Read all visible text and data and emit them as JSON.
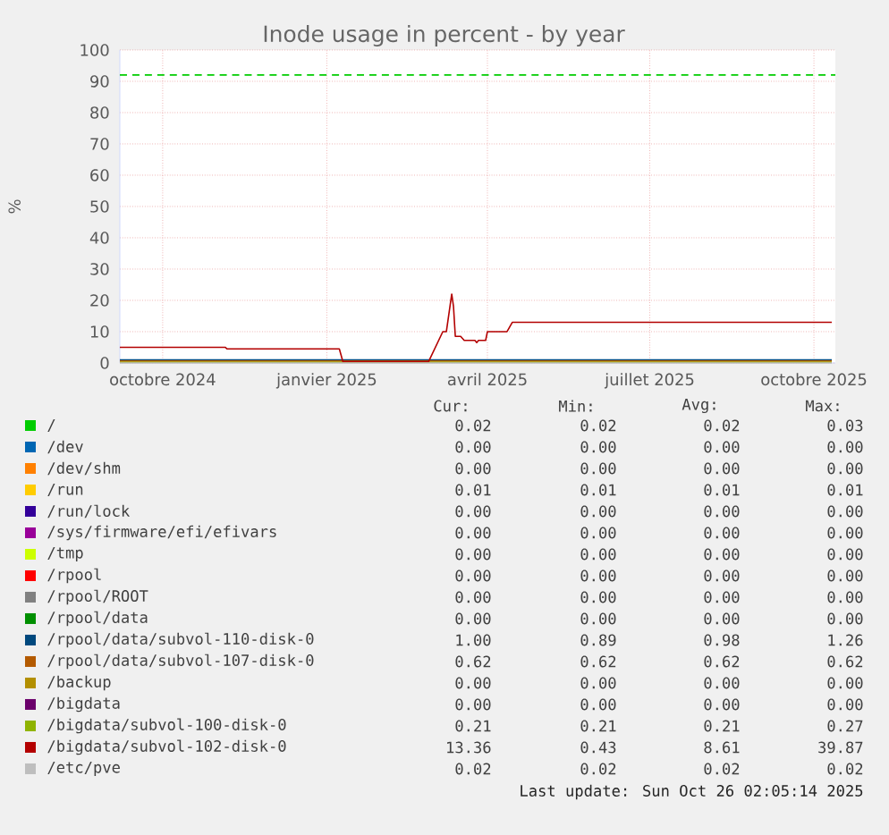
{
  "chart_data": {
    "type": "line",
    "title": "Inode usage in percent - by year",
    "ylabel": "%",
    "xlim": [
      "2024-09-07",
      "2025-10-13"
    ],
    "xticks": [
      {
        "value": "2024-10-01",
        "label": "octobre 2024"
      },
      {
        "value": "2025-01-01",
        "label": "janvier 2025"
      },
      {
        "value": "2025-04-01",
        "label": "avril 2025"
      },
      {
        "value": "2025-07-01",
        "label": "juillet 2025"
      },
      {
        "value": "2025-10-01",
        "label": "octobre 2025"
      }
    ],
    "ylim": [
      0,
      100
    ],
    "yticks": [
      0,
      10,
      20,
      30,
      40,
      50,
      60,
      70,
      80,
      90,
      100
    ],
    "grid": true,
    "legend": "bottom",
    "ref_lines": [
      {
        "axis": "y",
        "value": 92,
        "color": "#00cc00",
        "line_style": "dashed"
      }
    ],
    "series": [
      {
        "name": "/",
        "color": "#00cc00"
      },
      {
        "name": "/dev",
        "color": "#0066b3"
      },
      {
        "name": "/dev/shm",
        "color": "#ff8000"
      },
      {
        "name": "/run",
        "color": "#ffcc00"
      },
      {
        "name": "/run/lock",
        "color": "#330099"
      },
      {
        "name": "/sys/firmware/efi/efivars",
        "color": "#990099"
      },
      {
        "name": "/tmp",
        "color": "#ccff00"
      },
      {
        "name": "/rpool",
        "color": "#ff0000"
      },
      {
        "name": "/rpool/ROOT",
        "color": "#808080"
      },
      {
        "name": "/rpool/data",
        "color": "#008f00"
      },
      {
        "name": "/rpool/data/subvol-110-disk-0",
        "color": "#00487d",
        "x": [
          "2024-09-07",
          "2025-10-11"
        ],
        "values": [
          1,
          1
        ]
      },
      {
        "name": "/rpool/data/subvol-107-disk-0",
        "color": "#b35a00",
        "x": [
          "2024-09-07",
          "2025-10-11"
        ],
        "values": [
          0.6,
          0.6
        ]
      },
      {
        "name": "/backup",
        "color": "#b38f00"
      },
      {
        "name": "/bigdata",
        "color": "#6b006b"
      },
      {
        "name": "/bigdata/subvol-100-disk-0",
        "color": "#8fb300",
        "x": [
          "2024-09-07",
          "2025-10-11"
        ],
        "values": [
          0.2,
          0.2
        ]
      },
      {
        "name": "/bigdata/subvol-102-disk-0",
        "color": "#b30000",
        "x": [
          "2024-09-07",
          "2024-11-05",
          "2024-11-06",
          "2025-01-08",
          "2025-01-10",
          "2025-02-27",
          "2025-03-07",
          "2025-03-09",
          "2025-03-11",
          "2025-03-12",
          "2025-03-13",
          "2025-03-14",
          "2025-03-17",
          "2025-03-19",
          "2025-03-25",
          "2025-03-26",
          "2025-03-27",
          "2025-03-31",
          "2025-04-01",
          "2025-04-12",
          "2025-04-15",
          "2025-10-11"
        ],
        "values": [
          5,
          5,
          4.5,
          4.5,
          0.4,
          0.4,
          10,
          10,
          18,
          22,
          18,
          8.5,
          8.5,
          7.2,
          7.2,
          6.5,
          7.2,
          7.2,
          10,
          10,
          13,
          13
        ]
      },
      {
        "name": "/etc/pve",
        "color": "#bebebe",
        "x": [
          "2024-09-07",
          "2025-10-11"
        ],
        "values": [
          0,
          0
        ]
      }
    ],
    "annotations": [
      "Cur:",
      "Min:",
      "Avg:",
      "Max:",
      "0.02",
      "0.02",
      "0.02",
      "0.03",
      "0.00",
      "0.00",
      "0.00",
      "0.00",
      "0.00",
      "0.00",
      "0.00",
      "0.00",
      "0.01",
      "0.01",
      "0.01",
      "0.01",
      "0.00",
      "0.00",
      "0.00",
      "0.00",
      "0.00",
      "0.00",
      "0.00",
      "0.00",
      "0.00",
      "0.00",
      "0.00",
      "0.00",
      "0.00",
      "0.00",
      "0.00",
      "0.00",
      "0.00",
      "0.00",
      "0.00",
      "0.00",
      "0.00",
      "0.00",
      "0.00",
      "0.00",
      "1.00",
      "0.89",
      "0.98",
      "1.26",
      "0.62",
      "0.62",
      "0.62",
      "0.62",
      "0.00",
      "0.00",
      "0.00",
      "0.00",
      "0.00",
      "0.00",
      "0.00",
      "0.00",
      "0.21",
      "0.21",
      "0.21",
      "0.27",
      "13.36",
      "0.43",
      "8.61",
      "39.87",
      "0.02",
      "0.02",
      "0.02",
      "0.02",
      "Last update: Sun Oct 26 02:05:14 2025"
    ]
  }
}
